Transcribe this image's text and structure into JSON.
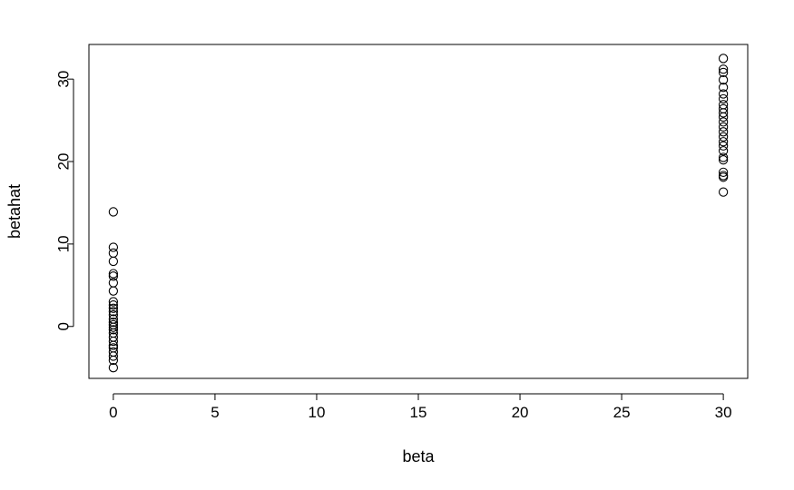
{
  "chart_data": {
    "type": "scatter",
    "title": "",
    "xlabel": "beta",
    "ylabel": "betahat",
    "xlim": [
      -1.2,
      31.2
    ],
    "ylim": [
      -6.3,
      34.2
    ],
    "x_ticks": [
      0,
      5,
      10,
      15,
      20,
      25,
      30
    ],
    "y_ticks": [
      0,
      10,
      20,
      30
    ],
    "x_tick_labels": [
      "0",
      "5",
      "10",
      "15",
      "20",
      "25",
      "30"
    ],
    "y_tick_labels": [
      "0",
      "10",
      "20",
      "30"
    ],
    "grid": false,
    "legend": "none",
    "marker": "open-circle",
    "colors": {
      "points": "#000000",
      "box": "#000000",
      "background": "#ffffff"
    },
    "points": [
      {
        "x": 0,
        "y": 13.9
      },
      {
        "x": 0,
        "y": 9.6
      },
      {
        "x": 0,
        "y": 8.9
      },
      {
        "x": 0,
        "y": 7.9
      },
      {
        "x": 0,
        "y": 6.4
      },
      {
        "x": 0,
        "y": 6.1
      },
      {
        "x": 0,
        "y": 5.3
      },
      {
        "x": 0,
        "y": 4.3
      },
      {
        "x": 0,
        "y": 3.0
      },
      {
        "x": 0,
        "y": 2.6
      },
      {
        "x": 0,
        "y": 2.2
      },
      {
        "x": 0,
        "y": 1.8
      },
      {
        "x": 0,
        "y": 1.4
      },
      {
        "x": 0,
        "y": 0.9
      },
      {
        "x": 0,
        "y": 0.5
      },
      {
        "x": 0,
        "y": 0.2
      },
      {
        "x": 0,
        "y": -0.1
      },
      {
        "x": 0,
        "y": -0.4
      },
      {
        "x": 0,
        "y": -0.8
      },
      {
        "x": 0,
        "y": -1.3
      },
      {
        "x": 0,
        "y": -1.8
      },
      {
        "x": 0,
        "y": -2.3
      },
      {
        "x": 0,
        "y": -2.6
      },
      {
        "x": 0,
        "y": -3.1
      },
      {
        "x": 0,
        "y": -3.6
      },
      {
        "x": 0,
        "y": -4.1
      },
      {
        "x": 0,
        "y": -5.0
      },
      {
        "x": 30,
        "y": 32.5
      },
      {
        "x": 30,
        "y": 31.2
      },
      {
        "x": 30,
        "y": 30.8
      },
      {
        "x": 30,
        "y": 29.9
      },
      {
        "x": 30,
        "y": 29.0
      },
      {
        "x": 30,
        "y": 28.2
      },
      {
        "x": 30,
        "y": 27.6
      },
      {
        "x": 30,
        "y": 26.9
      },
      {
        "x": 30,
        "y": 26.4
      },
      {
        "x": 30,
        "y": 25.9
      },
      {
        "x": 30,
        "y": 25.4
      },
      {
        "x": 30,
        "y": 24.8
      },
      {
        "x": 30,
        "y": 24.2
      },
      {
        "x": 30,
        "y": 23.6
      },
      {
        "x": 30,
        "y": 23.0
      },
      {
        "x": 30,
        "y": 22.4
      },
      {
        "x": 30,
        "y": 21.9
      },
      {
        "x": 30,
        "y": 21.3
      },
      {
        "x": 30,
        "y": 20.5
      },
      {
        "x": 30,
        "y": 20.2
      },
      {
        "x": 30,
        "y": 18.7
      },
      {
        "x": 30,
        "y": 18.3
      },
      {
        "x": 30,
        "y": 18.1
      },
      {
        "x": 30,
        "y": 16.3
      }
    ]
  }
}
